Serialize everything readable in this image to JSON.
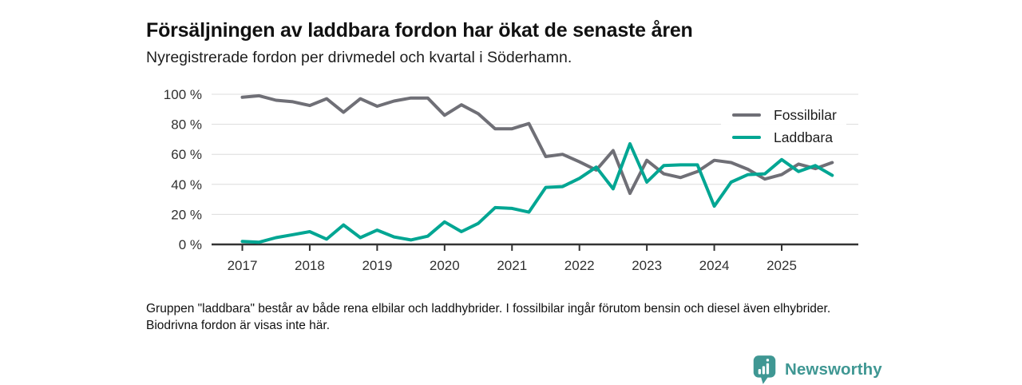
{
  "chart_data": {
    "type": "line",
    "title": "Försäljningen av laddbara fordon har ökat de senaste åren",
    "subtitle": "Nyregistrerade fordon per drivmedel och kvartal i Söderhamn.",
    "grid": "horizontal",
    "legend_position": "top-right",
    "ylim": [
      0,
      100
    ],
    "y_tick_labels": [
      "0 %",
      "20 %",
      "40 %",
      "60 %",
      "80 %",
      "100 %"
    ],
    "x_tick_labels": [
      "2017",
      "2018",
      "2019",
      "2020",
      "2021",
      "2022",
      "2023",
      "2024",
      "2025"
    ],
    "x": [
      "2017-Q1",
      "2017-Q2",
      "2017-Q3",
      "2017-Q4",
      "2018-Q1",
      "2018-Q2",
      "2018-Q3",
      "2018-Q4",
      "2019-Q1",
      "2019-Q2",
      "2019-Q3",
      "2019-Q4",
      "2020-Q1",
      "2020-Q2",
      "2020-Q3",
      "2020-Q4",
      "2021-Q1",
      "2021-Q2",
      "2021-Q3",
      "2021-Q4",
      "2022-Q1",
      "2022-Q2",
      "2022-Q3",
      "2022-Q4",
      "2023-Q1",
      "2023-Q2",
      "2023-Q3",
      "2023-Q4",
      "2024-Q1",
      "2024-Q2",
      "2024-Q3",
      "2024-Q4",
      "2025-Q1",
      "2025-Q2",
      "2025-Q3",
      "2025-Q4"
    ],
    "series": [
      {
        "name": "Fossilbilar",
        "color": "#6f6f76",
        "values": [
          98,
          99,
          96,
          95,
          92.5,
          97,
          88,
          97,
          92,
          95.5,
          97.5,
          97.5,
          86,
          93,
          87,
          77,
          77,
          80.5,
          58.5,
          60,
          55,
          49.5,
          62.5,
          34,
          56,
          47,
          44.5,
          48.5,
          56,
          54.5,
          50,
          43.5,
          46.5,
          53.5,
          50.5,
          54.5
        ]
      },
      {
        "name": "Laddbara",
        "color": "#00a693",
        "values": [
          2,
          1.5,
          4.5,
          6.5,
          8.5,
          3.5,
          13,
          4.5,
          9.5,
          5,
          3,
          5.5,
          15,
          8.5,
          14,
          24.5,
          24,
          21.5,
          38,
          38.5,
          44,
          51.5,
          37,
          67,
          41.5,
          52.5,
          53,
          53,
          25.5,
          41.5,
          46.5,
          47,
          56.5,
          48.5,
          52.5,
          46
        ]
      }
    ]
  },
  "footer": {
    "note": "Gruppen \"laddbara\" består av både rena elbilar och laddhybrider. I fossilbilar ingår förutom bensin och diesel även elhybrider. Biodrivna fordon är visas inte här."
  },
  "logo": {
    "text": "Newsworthy",
    "color": "#3f9793"
  }
}
